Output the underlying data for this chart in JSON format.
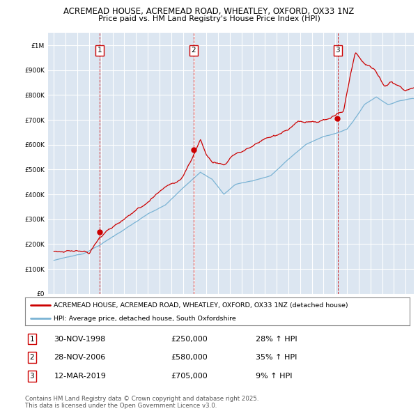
{
  "title_line1": "ACREMEAD HOUSE, ACREMEAD ROAD, WHEATLEY, OXFORD, OX33 1NZ",
  "title_line2": "Price paid vs. HM Land Registry's House Price Index (HPI)",
  "background_color": "#dce6f1",
  "grid_color": "#ffffff",
  "sale_color": "#cc0000",
  "hpi_color": "#7ab3d4",
  "sale_label": "ACREMEAD HOUSE, ACREMEAD ROAD, WHEATLEY, OXFORD, OX33 1NZ (detached house)",
  "hpi_label": "HPI: Average price, detached house, South Oxfordshire",
  "transactions": [
    {
      "num": 1,
      "date": "30-NOV-1998",
      "price": 250000,
      "hpi_pct": "28% ↑ HPI",
      "year": 1998.92
    },
    {
      "num": 2,
      "date": "28-NOV-2006",
      "price": 580000,
      "hpi_pct": "35% ↑ HPI",
      "year": 2006.92
    },
    {
      "num": 3,
      "date": "12-MAR-2019",
      "price": 705000,
      "hpi_pct": "9% ↑ HPI",
      "year": 2019.2
    }
  ],
  "yticks": [
    0,
    100000,
    200000,
    300000,
    400000,
    500000,
    600000,
    700000,
    800000,
    900000,
    1000000
  ],
  "ylim": [
    0,
    1050000
  ],
  "xlim_start": 1994.5,
  "xlim_end": 2025.7,
  "copyright_text": "Contains HM Land Registry data © Crown copyright and database right 2025.\nThis data is licensed under the Open Government Licence v3.0."
}
